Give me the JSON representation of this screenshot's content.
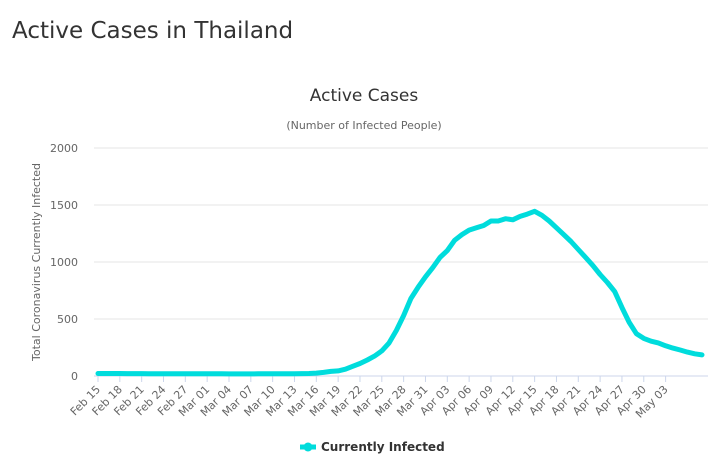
{
  "page": {
    "title": "Active Cases in Thailand"
  },
  "chart_data": {
    "type": "line",
    "title": "Active Cases",
    "subtitle": "(Number of Infected People)",
    "xlabel": "",
    "ylabel": "Total Coronavirus Currently Infected",
    "ylim": [
      0,
      2000
    ],
    "yticks": [
      "0",
      "500",
      "1000",
      "1500",
      "2000"
    ],
    "grid": true,
    "legend_position": "bottom",
    "line_color": "#00dcdc",
    "x_tick_labels": [
      "Feb 15",
      "Feb 18",
      "Feb 21",
      "Feb 24",
      "Feb 27",
      "Mar 01",
      "Mar 04",
      "Mar 07",
      "Mar 10",
      "Mar 13",
      "Mar 16",
      "Mar 19",
      "Mar 22",
      "Mar 25",
      "Mar 28",
      "Mar 31",
      "Apr 03",
      "Apr 06",
      "Apr 09",
      "Apr 12",
      "Apr 15",
      "Apr 18",
      "Apr 21",
      "Apr 24",
      "Apr 27",
      "Apr 30",
      "May 03"
    ],
    "series": [
      {
        "name": "Currently Infected",
        "values": [
          22,
          22,
          22,
          22,
          21,
          21,
          21,
          20,
          20,
          20,
          20,
          20,
          20,
          20,
          19,
          19,
          19,
          19,
          18,
          18,
          18,
          18,
          19,
          19,
          19,
          20,
          20,
          20,
          21,
          22,
          25,
          32,
          40,
          45,
          60,
          85,
          110,
          140,
          175,
          220,
          290,
          400,
          530,
          680,
          780,
          870,
          950,
          1040,
          1100,
          1190,
          1240,
          1280,
          1300,
          1320,
          1360,
          1360,
          1380,
          1370,
          1400,
          1420,
          1445,
          1410,
          1360,
          1300,
          1240,
          1180,
          1110,
          1040,
          970,
          890,
          820,
          740,
          600,
          470,
          370,
          330,
          305,
          290,
          265,
          245,
          228,
          210,
          195,
          185
        ]
      }
    ]
  }
}
